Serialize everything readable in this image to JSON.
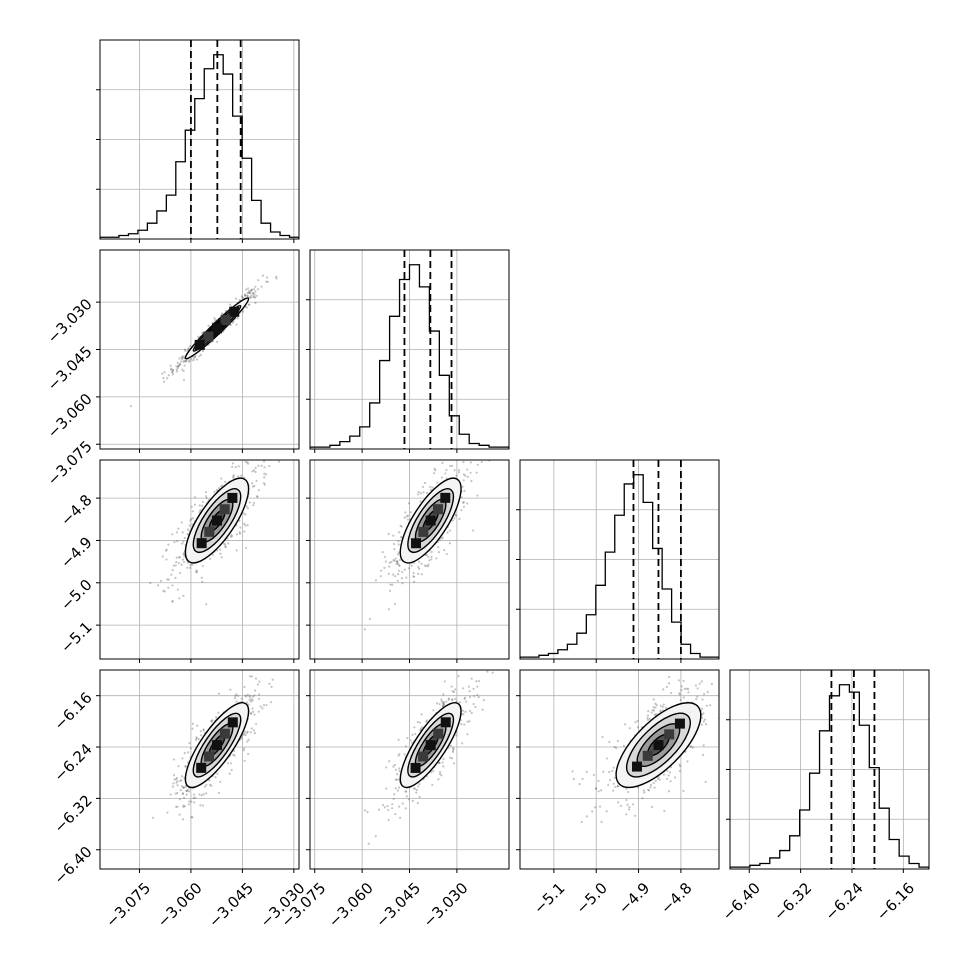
{
  "chart_data": {
    "type": "corner",
    "parameters": [
      {
        "range": [
          -3.0865,
          -3.0285
        ],
        "ticks": [
          -3.075,
          -3.06,
          -3.045,
          -3.03
        ],
        "tick_labels": [
          "−3.075",
          "−3.060",
          "−3.045",
          "−3.030"
        ],
        "quantiles": [
          -3.06,
          -3.0523,
          -3.0455
        ],
        "center": -3.0524,
        "sd": 0.0046
      },
      {
        "range": [
          -3.0765,
          -3.0135
        ],
        "ticks": [
          -3.075,
          -3.06,
          -3.045,
          -3.03
        ],
        "tick_labels": [
          "−3.075",
          "−3.060",
          "−3.045",
          "−3.030"
        ],
        "quantiles": [
          -3.0466,
          -3.0384,
          -3.0317
        ],
        "center": -3.0383,
        "sd": 0.0048
      },
      {
        "range": [
          -5.18,
          -4.71
        ],
        "ticks": [
          -5.1,
          -5.0,
          -4.9,
          -4.8
        ],
        "tick_labels": [
          "−5.1",
          "−5.0",
          "−4.9",
          "−4.8"
        ],
        "quantiles": [
          -4.912,
          -4.853,
          -4.8
        ],
        "center": -4.853,
        "sd": 0.05
      },
      {
        "range": [
          -6.43,
          -6.12
        ],
        "ticks": [
          -6.4,
          -6.32,
          -6.24,
          -6.16
        ],
        "tick_labels": [
          "−6.40",
          "−6.32",
          "−6.24",
          "−6.16"
        ],
        "quantiles": [
          -6.272,
          -6.237,
          -6.205
        ],
        "center": -6.237,
        "sd": 0.033
      }
    ],
    "correlations": [
      [
        1.0,
        0.97,
        0.75,
        0.8
      ],
      [
        0.97,
        1.0,
        0.75,
        0.8
      ],
      [
        0.75,
        0.75,
        1.0,
        0.7
      ],
      [
        0.8,
        0.8,
        0.7,
        1.0
      ]
    ],
    "histograms": [
      [
        1,
        1,
        2,
        3,
        5,
        9,
        16,
        25,
        44,
        62,
        80,
        97,
        105,
        94,
        70,
        46,
        22,
        9,
        4,
        2,
        1
      ],
      [
        1,
        1,
        2,
        4,
        7,
        12,
        25,
        48,
        72,
        92,
        100,
        88,
        64,
        40,
        18,
        8,
        3,
        2,
        1,
        1
      ],
      [
        1,
        1,
        2,
        3,
        5,
        8,
        14,
        24,
        40,
        58,
        78,
        95,
        100,
        85,
        60,
        38,
        20,
        8,
        3,
        1,
        1
      ],
      [
        1,
        1,
        2,
        3,
        6,
        10,
        18,
        32,
        52,
        75,
        94,
        100,
        96,
        78,
        55,
        33,
        16,
        7,
        3,
        1
      ]
    ],
    "contour_levels": [
      "0.5sigma",
      "1sigma",
      "1.5sigma",
      "2sigma"
    ],
    "grid": true,
    "colors": {
      "line": "#000000",
      "grid": "#b0b0b0",
      "points": "#555555"
    }
  }
}
